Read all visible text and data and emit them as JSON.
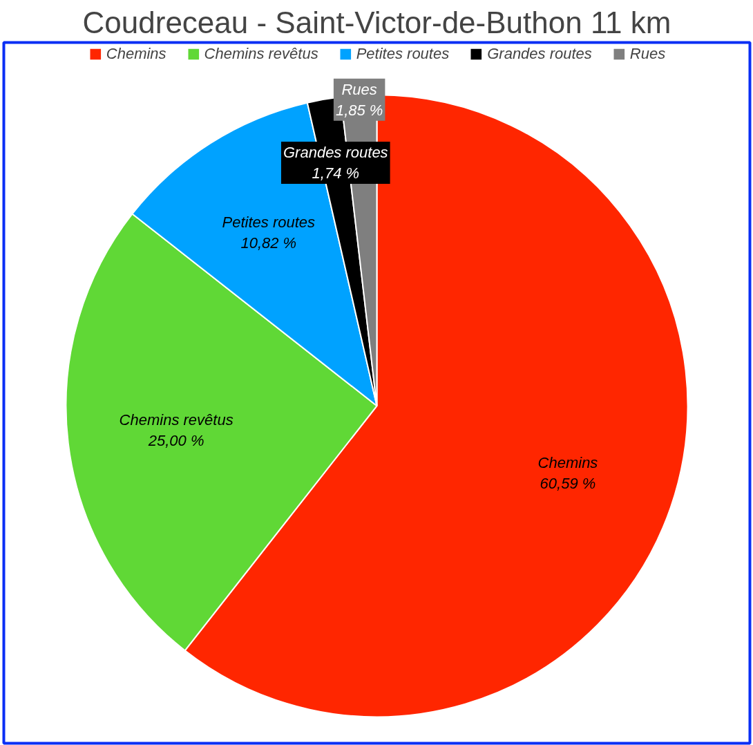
{
  "chart_data": {
    "type": "pie",
    "title": "Coudreceau - Saint-Victor-de-Buthon 11 km",
    "categories": [
      "Chemins",
      "Chemins revêtus",
      "Petites routes",
      "Grandes routes",
      "Rues"
    ],
    "values": [
      60.59,
      25.0,
      10.82,
      1.74,
      1.85
    ],
    "colors": [
      "#ff2600",
      "#60d836",
      "#00a2ff",
      "#000000",
      "#7f7f7f"
    ],
    "value_labels": [
      "60,59 %",
      "25,00 %",
      "10,82 %",
      "1,74 %",
      "1,85 %"
    ],
    "legend": "top"
  }
}
